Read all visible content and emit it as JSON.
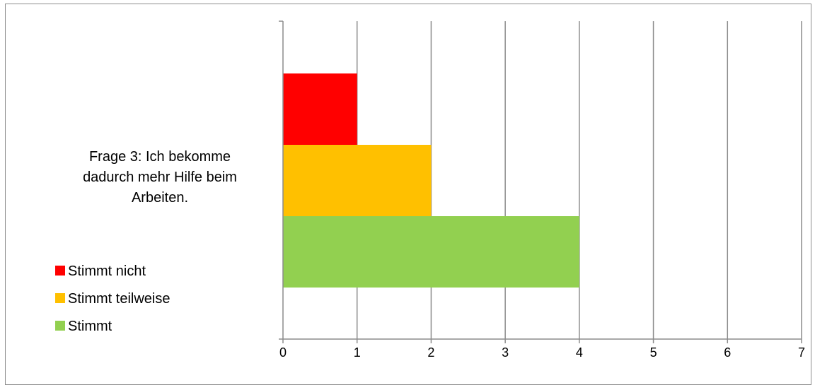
{
  "chart_data": {
    "type": "bar",
    "orientation": "horizontal",
    "stacked": false,
    "categories": [
      "Frage 3: Ich bekomme dadurch mehr Hilfe beim Arbeiten."
    ],
    "category_lines": [
      "Frage 3: Ich bekomme",
      "dadurch mehr Hilfe beim",
      "Arbeiten."
    ],
    "series": [
      {
        "name": "Stimmt nicht",
        "values": [
          1
        ],
        "color": "#ff0000"
      },
      {
        "name": "Stimmt teilweise",
        "values": [
          2
        ],
        "color": "#ffc000"
      },
      {
        "name": "Stimmt",
        "values": [
          4
        ],
        "color": "#92d050"
      }
    ],
    "xlim": [
      0,
      7
    ],
    "xticks": [
      "0",
      "1",
      "2",
      "3",
      "4",
      "5",
      "6",
      "7"
    ],
    "grid": "vertical",
    "legend_position": "left"
  }
}
